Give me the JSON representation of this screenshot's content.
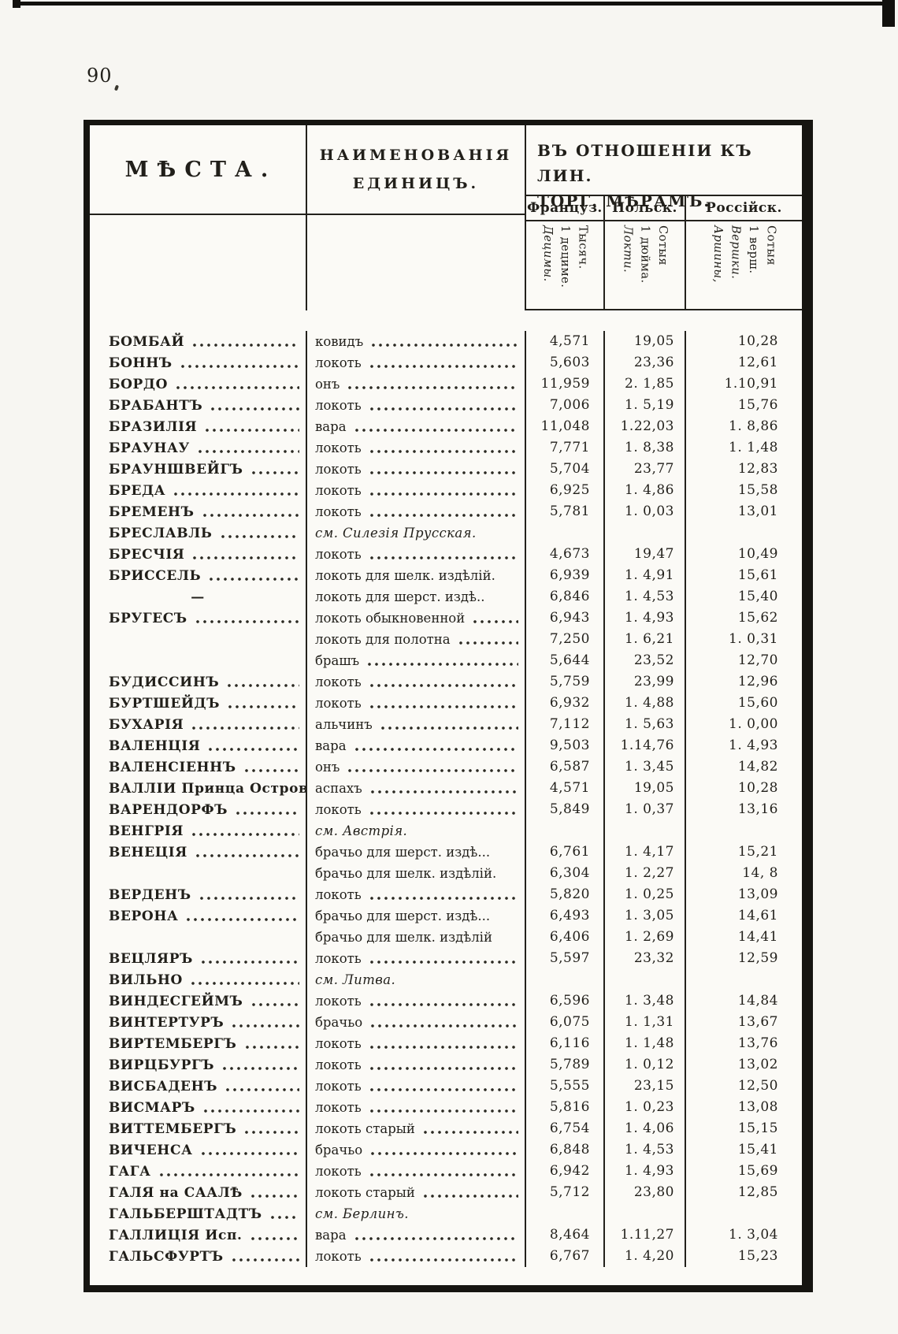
{
  "page": {
    "number": "90"
  },
  "table": {
    "col_places": "МѢСТА.",
    "col_units_line1": "НАИМЕНОВАНІЯ",
    "col_units_line2": "ЕДИНИЦЪ.",
    "col_values_line1": "ВЪ ОТНОШЕНІИ КЪ ЛИН.",
    "col_values_line2": "ТОРГ. МѢРАМЪ.",
    "value_columns": [
      {
        "label": "Француз.",
        "sub": [
          "Тысяч.",
          "1 дециме."
        ],
        "unit_names": [
          "Децимы."
        ]
      },
      {
        "label": "Польск.",
        "sub": [
          "Сотыя",
          "1 дюйма."
        ],
        "unit_names": [
          "Локти."
        ]
      },
      {
        "label": "Россійск.",
        "sub": [
          "Сотыя",
          "1 верш."
        ],
        "unit_names": [
          "Вершки.",
          "Аршины,"
        ]
      }
    ],
    "rows": [
      {
        "place": "БОМБАЙ",
        "pdots": true,
        "unit": "ковидъ",
        "udots": true,
        "note": false,
        "fr": "4,571",
        "po": "19,05",
        "ru": "10,28"
      },
      {
        "place": "БОННЪ",
        "pdots": true,
        "unit": "локоть",
        "udots": true,
        "note": false,
        "fr": "5,603",
        "po": "23,36",
        "ru": "12,61"
      },
      {
        "place": "БОРДО",
        "pdots": true,
        "unit": "онъ",
        "udots": true,
        "note": false,
        "fr": "11,959",
        "po": "2. 1,85",
        "ru": "1.10,91"
      },
      {
        "place": "БРАБАНТЪ",
        "pdots": true,
        "unit": "локоть",
        "udots": true,
        "note": false,
        "fr": "7,006",
        "po": "1. 5,19",
        "ru": "15,76"
      },
      {
        "place": "БРАЗИЛІЯ",
        "pdots": true,
        "unit": "вара",
        "udots": true,
        "note": false,
        "fr": "11,048",
        "po": "1.22,03",
        "ru": "1. 8,86"
      },
      {
        "place": "БРАУНАУ",
        "pdots": true,
        "unit": "локоть",
        "udots": true,
        "note": false,
        "fr": "7,771",
        "po": "1. 8,38",
        "ru": "1. 1,48"
      },
      {
        "place": "БРАУНШВЕЙГЪ",
        "pdots": true,
        "unit": "локоть",
        "udots": true,
        "note": false,
        "fr": "5,704",
        "po": "23,77",
        "ru": "12,83"
      },
      {
        "place": "БРЕДА",
        "pdots": true,
        "unit": "локоть",
        "udots": true,
        "note": false,
        "fr": "6,925",
        "po": "1. 4,86",
        "ru": "15,58"
      },
      {
        "place": "БРЕМЕНЪ",
        "pdots": true,
        "unit": "локоть",
        "udots": true,
        "note": false,
        "fr": "5,781",
        "po": "1. 0,03",
        "ru": "13,01"
      },
      {
        "place": "БРЕСЛАВЛЬ",
        "pdots": true,
        "unit": "см. Силезія Прусская.",
        "udots": false,
        "note": true,
        "fr": "",
        "po": "",
        "ru": ""
      },
      {
        "place": "БРЕСЧІЯ",
        "pdots": true,
        "unit": "локоть",
        "udots": true,
        "note": false,
        "fr": "4,673",
        "po": "19,47",
        "ru": "10,49"
      },
      {
        "place": "БРИССЕЛЬ",
        "pdots": true,
        "unit": "локоть для шелк. издѣлій.",
        "udots": false,
        "note": false,
        "fr": "6,939",
        "po": "1. 4,91",
        "ru": "15,61"
      },
      {
        "place": "—",
        "pdots": false,
        "unit": "локоть для шерст. издѣ..",
        "udots": false,
        "note": false,
        "fr": "6,846",
        "po": "1. 4,53",
        "ru": "15,40"
      },
      {
        "place": "БРУГЕСЪ",
        "pdots": true,
        "unit": "локоть обыкновенной",
        "udots": true,
        "note": false,
        "fr": "6,943",
        "po": "1. 4,93",
        "ru": "15,62"
      },
      {
        "place": "",
        "pdots": false,
        "unit": "локоть для полотна",
        "udots": true,
        "note": false,
        "fr": "7,250",
        "po": "1. 6,21",
        "ru": "1. 0,31"
      },
      {
        "place": "",
        "pdots": false,
        "unit": "брашъ",
        "udots": true,
        "note": false,
        "fr": "5,644",
        "po": "23,52",
        "ru": "12,70"
      },
      {
        "place": "БУДИССИНЪ",
        "pdots": true,
        "unit": "локоть",
        "udots": true,
        "note": false,
        "fr": "5,759",
        "po": "23,99",
        "ru": "12,96"
      },
      {
        "place": "БУРТШЕЙДЪ",
        "pdots": true,
        "unit": "локоть",
        "udots": true,
        "note": false,
        "fr": "6,932",
        "po": "1. 4,88",
        "ru": "15,60"
      },
      {
        "place": "БУХАРІЯ",
        "pdots": true,
        "unit": "альчинъ",
        "udots": true,
        "note": false,
        "fr": "7,112",
        "po": "1. 5,63",
        "ru": "1. 0,00"
      },
      {
        "place": "ВАЛЕНЦІЯ",
        "pdots": true,
        "unit": "вара",
        "udots": true,
        "note": false,
        "fr": "9,503",
        "po": "1.14,76",
        "ru": "1. 4,93"
      },
      {
        "place": "ВАЛЕНСІЕННЪ",
        "pdots": true,
        "unit": "онъ",
        "udots": true,
        "note": false,
        "fr": "6,587",
        "po": "1. 3,45",
        "ru": "14,82"
      },
      {
        "place": "ВАЛЛІИ Принца Островъ",
        "pdots": false,
        "unit": "аспахъ",
        "udots": true,
        "note": false,
        "fr": "4,571",
        "po": "19,05",
        "ru": "10,28"
      },
      {
        "place": "ВАРЕНДОРФЪ",
        "pdots": true,
        "unit": "локоть",
        "udots": true,
        "note": false,
        "fr": "5,849",
        "po": "1. 0,37",
        "ru": "13,16"
      },
      {
        "place": "ВЕНГРІЯ",
        "pdots": true,
        "unit": "см. Австрія.",
        "udots": false,
        "note": true,
        "fr": "",
        "po": "",
        "ru": ""
      },
      {
        "place": "ВЕНЕЦІЯ",
        "pdots": true,
        "unit": "брачьо для шерст. издѣ...",
        "udots": false,
        "note": false,
        "fr": "6,761",
        "po": "1. 4,17",
        "ru": "15,21"
      },
      {
        "place": "",
        "pdots": false,
        "unit": "брачьо для шелк. издѣлій.",
        "udots": false,
        "note": false,
        "fr": "6,304",
        "po": "1. 2,27",
        "ru": "14, 8"
      },
      {
        "place": "ВЕРДЕНЪ",
        "pdots": true,
        "unit": "локоть",
        "udots": true,
        "note": false,
        "fr": "5,820",
        "po": "1. 0,25",
        "ru": "13,09"
      },
      {
        "place": "ВЕРОНА",
        "pdots": true,
        "unit": "брачьо для шерст. издѣ...",
        "udots": false,
        "note": false,
        "fr": "6,493",
        "po": "1. 3,05",
        "ru": "14,61"
      },
      {
        "place": "",
        "pdots": false,
        "unit": "брачьо для шелк. издѣлій",
        "udots": false,
        "note": false,
        "fr": "6,406",
        "po": "1. 2,69",
        "ru": "14,41"
      },
      {
        "place": "ВЕЦЛЯРЪ",
        "pdots": true,
        "unit": "локоть",
        "udots": true,
        "note": false,
        "fr": "5,597",
        "po": "23,32",
        "ru": "12,59"
      },
      {
        "place": "ВИЛЬНО",
        "pdots": true,
        "unit": "см. Литва.",
        "udots": false,
        "note": true,
        "fr": "",
        "po": "",
        "ru": ""
      },
      {
        "place": "ВИНДЕСГЕЙМЪ",
        "pdots": true,
        "unit": "локоть",
        "udots": true,
        "note": false,
        "fr": "6,596",
        "po": "1. 3,48",
        "ru": "14,84"
      },
      {
        "place": "ВИНТЕРТУРЪ",
        "pdots": true,
        "unit": "брачьо",
        "udots": true,
        "note": false,
        "fr": "6,075",
        "po": "1. 1,31",
        "ru": "13,67"
      },
      {
        "place": "ВИРТЕМБЕРГЪ",
        "pdots": true,
        "unit": "локоть",
        "udots": true,
        "note": false,
        "fr": "6,116",
        "po": "1. 1,48",
        "ru": "13,76"
      },
      {
        "place": "ВИРЦБУРГЪ",
        "pdots": true,
        "unit": "локоть",
        "udots": true,
        "note": false,
        "fr": "5,789",
        "po": "1. 0,12",
        "ru": "13,02"
      },
      {
        "place": "ВИСБАДЕНЪ",
        "pdots": true,
        "unit": "локоть",
        "udots": true,
        "note": false,
        "fr": "5,555",
        "po": "23,15",
        "ru": "12,50"
      },
      {
        "place": "ВИСМАРЪ",
        "pdots": true,
        "unit": "локоть",
        "udots": true,
        "note": false,
        "fr": "5,816",
        "po": "1. 0,23",
        "ru": "13,08"
      },
      {
        "place": "ВИТТЕМБЕРГЪ",
        "pdots": true,
        "unit": "локоть старый",
        "udots": true,
        "note": false,
        "fr": "6,754",
        "po": "1. 4,06",
        "ru": "15,15"
      },
      {
        "place": "ВИЧЕНСА",
        "pdots": true,
        "unit": "брачьо",
        "udots": true,
        "note": false,
        "fr": "6,848",
        "po": "1. 4,53",
        "ru": "15,41"
      },
      {
        "place": "ГАГА",
        "pdots": true,
        "unit": "локоть",
        "udots": true,
        "note": false,
        "fr": "6,942",
        "po": "1. 4,93",
        "ru": "15,69"
      },
      {
        "place": "ГАЛЯ на СААЛѢ",
        "pdots": true,
        "unit": "локоть старый",
        "udots": true,
        "note": false,
        "fr": "5,712",
        "po": "23,80",
        "ru": "12,85"
      },
      {
        "place": "ГАЛЬБЕРШТАДТЪ",
        "pdots": true,
        "unit": "см. Берлинъ.",
        "udots": false,
        "note": true,
        "fr": "",
        "po": "",
        "ru": ""
      },
      {
        "place": "ГАЛЛИЦІЯ Исп.",
        "pdots": true,
        "unit": "вара",
        "udots": true,
        "note": false,
        "fr": "8,464",
        "po": "1.11,27",
        "ru": "1. 3,04"
      },
      {
        "place": "ГАЛЬСФУРТЪ",
        "pdots": true,
        "unit": "локоть",
        "udots": true,
        "note": false,
        "fr": "6,767",
        "po": "1. 4,20",
        "ru": "15,23"
      }
    ]
  }
}
